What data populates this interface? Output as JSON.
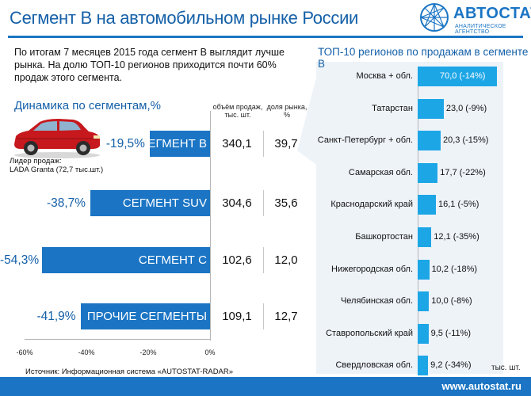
{
  "header": {
    "title": "Сегмент B на автомобильном рынке России",
    "logo_name": "АВТОСТАТ",
    "logo_sub": "АНАЛИТИЧЕСКОЕ АГЕНТСТВО"
  },
  "intro": "По итогам 7 месяцев 2015 года сегмент B выглядит лучше рынка. На долю ТОП-10 регионов приходится почти 60% продаж этого сегмента.",
  "leader": {
    "line1": "Лидер продаж:",
    "line2": "LADA Granta (72,7 тыс.шт.)"
  },
  "source": "Источник: Информационная система «AUTOSTAT-RADAR»",
  "footer_url": "www.autostat.ru",
  "colors": {
    "dark_blue": "#1b75c4",
    "light_blue": "#1da6e6",
    "title_blue": "#1560a8"
  },
  "chart_data": [
    {
      "type": "bar",
      "title": "Динамика по сегментам,%",
      "orientation": "horizontal",
      "column_headers": {
        "volume": "объём продаж, тыс. шт.",
        "share": "доля рынка, %"
      },
      "categories": [
        "СЕГМЕНТ B",
        "СЕГМЕНТ SUV",
        "СЕГМЕНТ С",
        "ПРОЧИЕ СЕГМЕНТЫ"
      ],
      "values": [
        -19.5,
        -38.7,
        -54.3,
        -41.9
      ],
      "value_labels": [
        "-19,5%",
        "-38,7%",
        "-54,3%",
        "-41,9%"
      ],
      "volume_labels": [
        "340,1",
        "304,6",
        "102,6",
        "109,1"
      ],
      "share_labels": [
        "39,7",
        "35,6",
        "12,0",
        "12,7"
      ],
      "xlim": [
        -60,
        0
      ],
      "ticks": [
        "-60%",
        "-40%",
        "-20%",
        "0%"
      ]
    },
    {
      "type": "bar",
      "title": "ТОП-10 регионов по продажам в сегменте B",
      "orientation": "horizontal",
      "unit": "тыс. шт.",
      "categories": [
        "Москва + обл.",
        "Татарстан",
        "Санкт-Петербург + обл.",
        "Самарская обл.",
        "Краснодарский край",
        "Башкортостан",
        "Нижегородская обл.",
        "Челябинская обл.",
        "Ставропольский край",
        "Свердловская обл."
      ],
      "values": [
        70.0,
        23.0,
        20.3,
        17.7,
        16.1,
        12.1,
        10.2,
        10.0,
        9.5,
        9.2
      ],
      "value_labels": [
        "70,0 (-14%)",
        "23,0 (-9%)",
        "20,3 (-15%)",
        "17,7 (-22%)",
        "16,1 (-5%)",
        "12,1 (-35%)",
        "10,2 (-18%)",
        "10,0 (-8%)",
        "9,5 (-11%)",
        "9,2 (-34%)"
      ],
      "xlim": [
        0,
        75
      ]
    }
  ]
}
